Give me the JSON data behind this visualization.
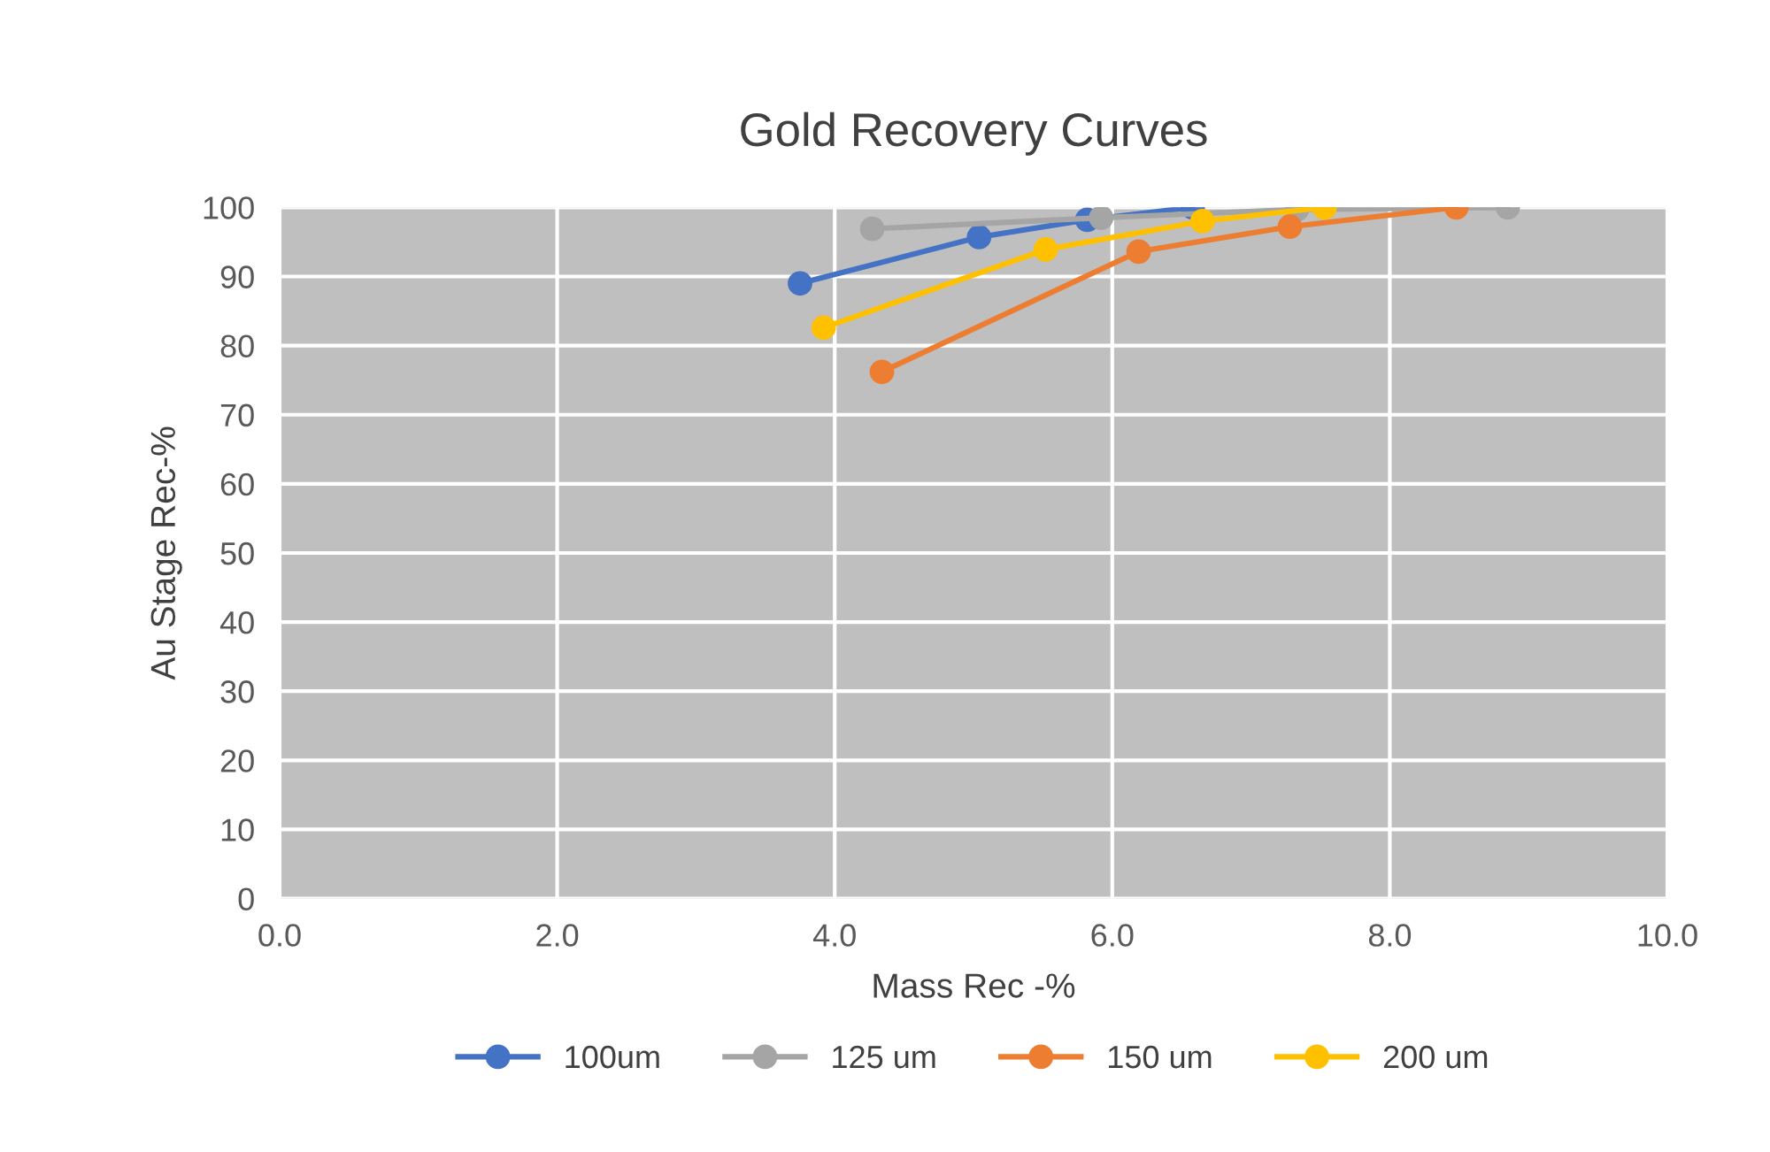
{
  "chart_data": {
    "type": "line",
    "title": "Gold Recovery Curves",
    "xlabel": "Mass Rec -%",
    "ylabel": "Au Stage Rec-%",
    "xlim": [
      0,
      10
    ],
    "xticks": [
      {
        "value": 0,
        "label": "0.0"
      },
      {
        "value": 2,
        "label": "2.0"
      },
      {
        "value": 4,
        "label": "4.0"
      },
      {
        "value": 6,
        "label": "6.0"
      },
      {
        "value": 8,
        "label": "8.0"
      },
      {
        "value": 10,
        "label": "10.0"
      }
    ],
    "ylim": [
      0,
      100
    ],
    "yticks": [
      0,
      10,
      20,
      30,
      40,
      50,
      60,
      70,
      80,
      90,
      100
    ],
    "grid": true,
    "legend": "bottom",
    "marker": "circle",
    "line_style": "solid",
    "series": [
      {
        "name": "100um",
        "color": "#4472c4",
        "x": [
          3.75,
          5.04,
          5.82,
          6.58
        ],
        "values": [
          89.0,
          95.7,
          98.2,
          100
        ]
      },
      {
        "name": "125 um",
        "color": "#a5a5a5",
        "x": [
          4.27,
          5.92,
          7.33,
          8.85
        ],
        "values": [
          96.9,
          98.5,
          99.7,
          100
        ]
      },
      {
        "name": "150 um",
        "color": "#ed7d31",
        "x": [
          4.34,
          6.19,
          7.28,
          8.48
        ],
        "values": [
          76.2,
          93.6,
          97.2,
          100
        ]
      },
      {
        "name": "200 um",
        "color": "#ffc000",
        "x": [
          3.92,
          5.52,
          6.65,
          7.53
        ],
        "values": [
          82.6,
          93.9,
          98.0,
          100
        ]
      }
    ]
  }
}
